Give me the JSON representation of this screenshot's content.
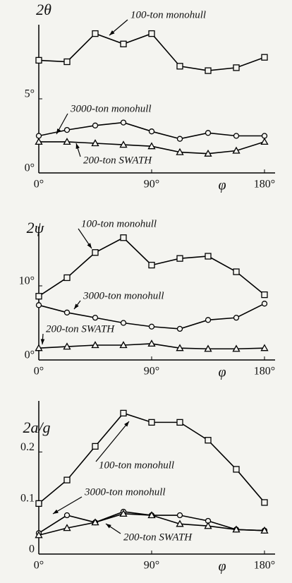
{
  "chart_data": [
    {
      "type": "line",
      "ylabel": "2θ",
      "xlabel": "φ",
      "x": [
        0,
        22.5,
        45,
        67.5,
        90,
        112.5,
        135,
        157.5,
        180
      ],
      "xlim": [
        0,
        180
      ],
      "xticks": [
        {
          "value": 0,
          "label": "0°"
        },
        {
          "value": 90,
          "label": "90°"
        },
        {
          "value": 180,
          "label": "180°"
        }
      ],
      "ylim": [
        0,
        10
      ],
      "yticks": [
        {
          "value": 0,
          "label": "0°"
        },
        {
          "value": 5,
          "label": "5°"
        }
      ],
      "series": [
        {
          "name": "100-ton monohull",
          "color": "#000000",
          "marker": "square",
          "values": [
            7.6,
            7.5,
            9.4,
            8.7,
            9.4,
            7.2,
            6.9,
            7.1,
            7.8
          ]
        },
        {
          "name": "3000-ton monohull",
          "color": "#000000",
          "marker": "circle",
          "values": [
            2.5,
            2.9,
            3.2,
            3.4,
            2.8,
            2.3,
            2.7,
            2.5,
            2.5
          ]
        },
        {
          "name": "200-ton SWATH",
          "color": "#000000",
          "marker": "triangle",
          "values": [
            2.1,
            2.1,
            2.0,
            1.9,
            1.8,
            1.4,
            1.3,
            1.5,
            2.1
          ]
        }
      ]
    },
    {
      "type": "line",
      "ylabel": "2ψ",
      "xlabel": "φ",
      "x": [
        0,
        22.5,
        45,
        67.5,
        90,
        112.5,
        135,
        157.5,
        180
      ],
      "xlim": [
        0,
        180
      ],
      "xticks": [
        {
          "value": 0,
          "label": "0°"
        },
        {
          "value": 90,
          "label": "90°"
        },
        {
          "value": 180,
          "label": "180°"
        }
      ],
      "ylim": [
        0,
        18
      ],
      "yticks": [
        {
          "value": 0,
          "label": "0°"
        },
        {
          "value": 10,
          "label": "10°"
        }
      ],
      "series": [
        {
          "name": "100-ton monohull",
          "color": "#000000",
          "marker": "square",
          "values": [
            8.6,
            11.1,
            14.5,
            16.5,
            12.8,
            13.7,
            14.0,
            11.9,
            8.8
          ]
        },
        {
          "name": "3000-ton monohull",
          "color": "#000000",
          "marker": "circle",
          "values": [
            7.4,
            6.4,
            5.7,
            5.0,
            4.5,
            4.2,
            5.4,
            5.7,
            7.6
          ]
        },
        {
          "name": "200-ton SWATH",
          "color": "#000000",
          "marker": "triangle",
          "values": [
            1.6,
            1.8,
            2.0,
            2.0,
            2.2,
            1.6,
            1.5,
            1.5,
            1.6
          ]
        }
      ]
    },
    {
      "type": "line",
      "ylabel": "2a/g",
      "xlabel": "φ",
      "x": [
        0,
        22.5,
        45,
        67.5,
        90,
        112.5,
        135,
        157.5,
        180
      ],
      "xlim": [
        0,
        180
      ],
      "xticks": [
        {
          "value": 0,
          "label": "0°"
        },
        {
          "value": 90,
          "label": "90°"
        },
        {
          "value": 180,
          "label": "180°"
        }
      ],
      "ylim": [
        0,
        0.3
      ],
      "yticks": [
        0,
        0.1,
        0.2
      ],
      "series": [
        {
          "name": "100-ton monohull",
          "color": "#000000",
          "marker": "square",
          "values": [
            0.099,
            0.145,
            0.211,
            0.276,
            0.258,
            0.258,
            0.223,
            0.166,
            0.101
          ]
        },
        {
          "name": "3000-ton monohull",
          "color": "#000000",
          "marker": "circle",
          "values": [
            0.041,
            0.076,
            0.062,
            0.083,
            0.076,
            0.076,
            0.065,
            0.048,
            0.046
          ]
        },
        {
          "name": "200-ton SWATH",
          "color": "#000000",
          "marker": "triangle",
          "values": [
            0.037,
            0.051,
            0.062,
            0.079,
            0.076,
            0.059,
            0.055,
            0.048,
            0.046
          ]
        }
      ]
    }
  ]
}
